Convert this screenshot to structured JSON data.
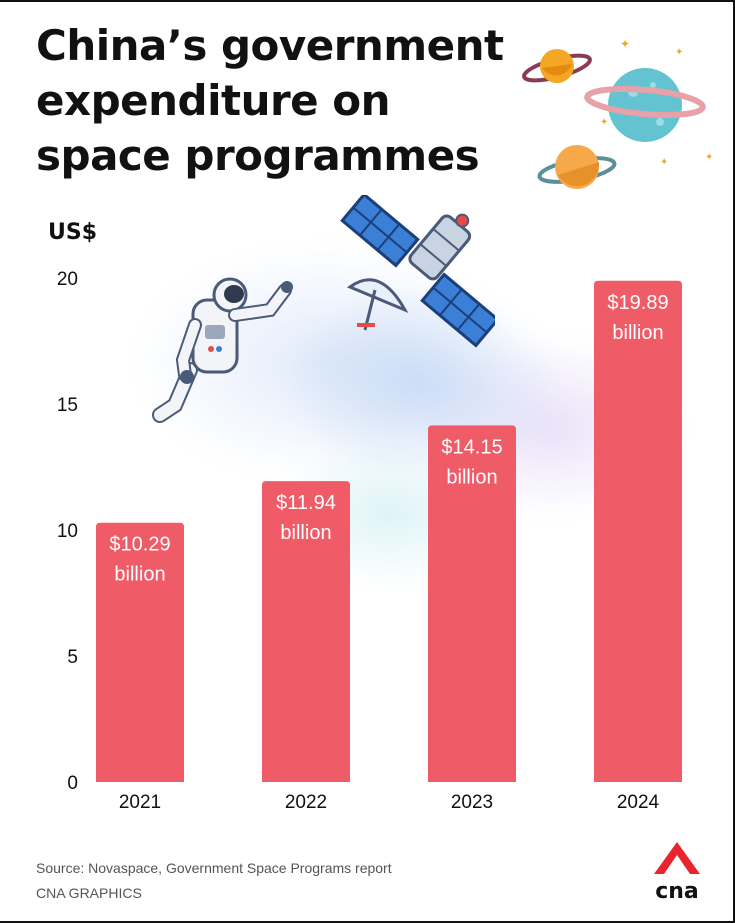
{
  "header": {
    "title": "China’s government expenditure on space programmes"
  },
  "chart_data": {
    "type": "bar",
    "title": "China’s government expenditure on space programmes",
    "ylabel": "US$",
    "xlabel": "",
    "categories": [
      "2021",
      "2022",
      "2023",
      "2024"
    ],
    "values": [
      10.29,
      11.94,
      14.15,
      19.89
    ],
    "data_labels": [
      [
        "$10.29",
        "billion"
      ],
      [
        "$11.94",
        "billion"
      ],
      [
        "$14.15",
        "billion"
      ],
      [
        "$19.89",
        "billion"
      ]
    ],
    "ylim": [
      0,
      20
    ],
    "yticks": [
      0,
      5,
      10,
      15,
      20
    ],
    "grid": false,
    "legend": "none"
  },
  "colors": {
    "bar": "#ef5b67",
    "label_text": "#ffffff",
    "axis_text": "#111111",
    "logo": "#e8252e"
  },
  "footer": {
    "source": "Source: Novaspace, Government Space Programs report",
    "credit": "CNA GRAPHICS",
    "logo_text": "cna"
  },
  "icons": {
    "astronaut": "astronaut-icon",
    "satellite": "satellite-icon",
    "planets": "planets-icon"
  }
}
